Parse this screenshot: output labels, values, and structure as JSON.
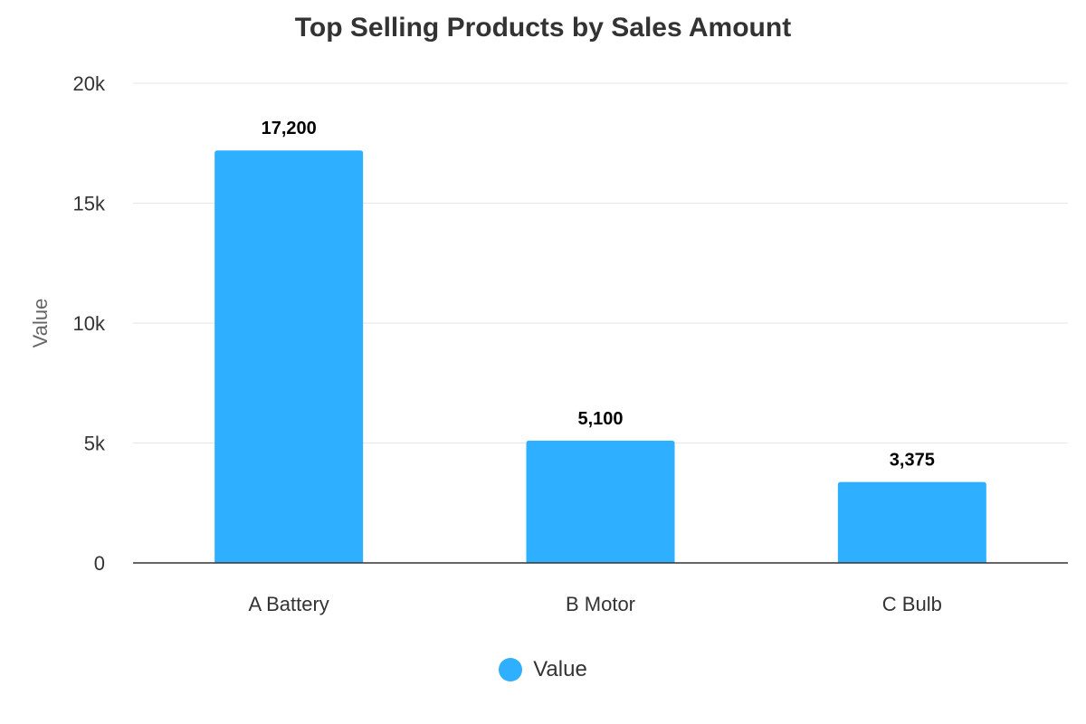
{
  "chart_data": {
    "type": "bar",
    "title": "Top Selling Products by Sales Amount",
    "xlabel": "",
    "ylabel": "Value",
    "categories": [
      "A Battery",
      "B Motor",
      "C Bulb"
    ],
    "series": [
      {
        "name": "Value",
        "values": [
          17200,
          5100,
          3375
        ],
        "data_labels": [
          "17,200",
          "5,100",
          "3,375"
        ]
      }
    ],
    "ylim": [
      0,
      20000
    ],
    "yticks": [
      0,
      5000,
      10000,
      15000,
      20000
    ],
    "ytick_labels": [
      "0",
      "5k",
      "10k",
      "15k",
      "20k"
    ],
    "grid": true,
    "legend_position": "bottom",
    "colors": {
      "bar": "#2eafff",
      "grid": "#e6e6e6",
      "axis": "#333333"
    }
  }
}
